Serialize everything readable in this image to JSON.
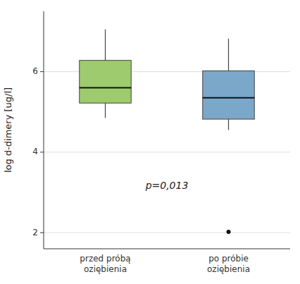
{
  "chart_data": {
    "type": "box",
    "ylabel": "log d-dimery [ug/l]",
    "ylim": [
      1.6,
      7.5
    ],
    "yticks": [
      2,
      4,
      6
    ],
    "grid": true,
    "categories": [
      "przed próbą\noziębienia",
      "po próbie\noziębienia"
    ],
    "colors": [
      "#9ecb6e",
      "#7ba7c9"
    ],
    "boxes": [
      {
        "q1": 5.22,
        "median": 5.6,
        "q3": 6.28,
        "whisker_low": 4.85,
        "whisker_high": 7.05
      },
      {
        "q1": 4.82,
        "median": 5.35,
        "q3": 6.02,
        "whisker_low": 4.55,
        "whisker_high": 6.82,
        "outliers": [
          2.02
        ]
      }
    ],
    "annotations": [
      {
        "text": "p=0,013",
        "y": 3.15
      }
    ]
  }
}
